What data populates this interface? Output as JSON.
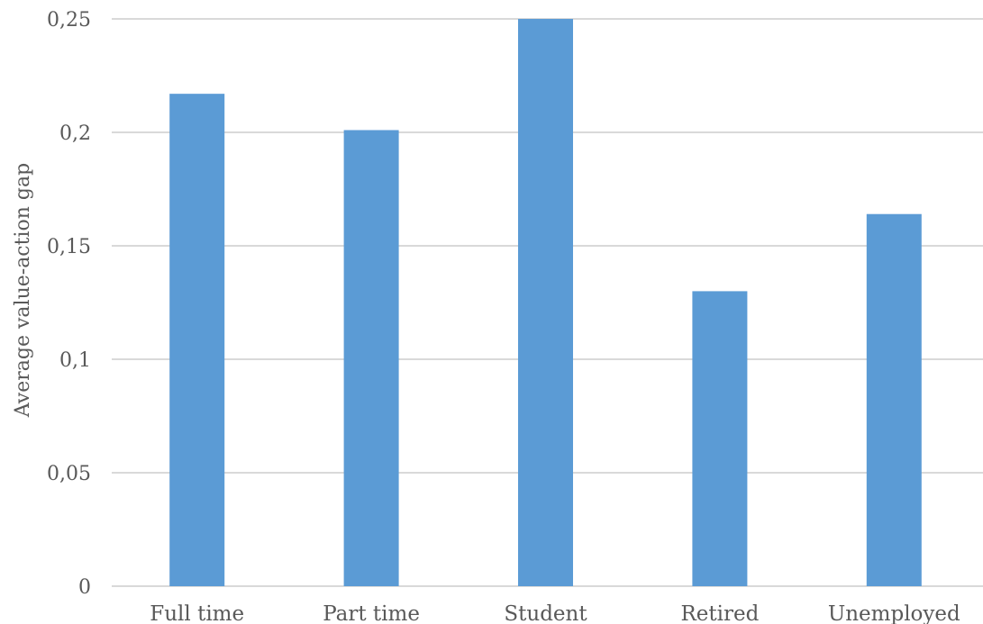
{
  "chart_data": {
    "type": "bar",
    "title": "",
    "xlabel": "",
    "ylabel": "Average value-action gap",
    "categories": [
      "Full time",
      "Part time",
      "Student",
      "Retired",
      "Unemployed"
    ],
    "values": [
      0.217,
      0.201,
      0.25,
      0.13,
      0.164
    ],
    "ylim": [
      0,
      0.25
    ],
    "yticks": [
      0,
      0.05,
      0.1,
      0.15,
      0.2,
      0.25
    ],
    "ytick_labels": [
      "0",
      "0,05",
      "0,1",
      "0,15",
      "0,2",
      "0,25"
    ],
    "bar_color": "#5b9bd5",
    "grid": true,
    "legend": "none"
  }
}
